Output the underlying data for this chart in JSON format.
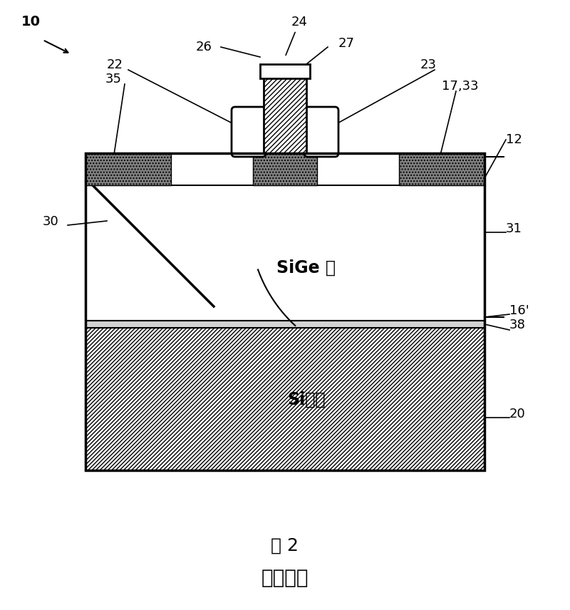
{
  "bg_color": "#ffffff",
  "title1": "图 2",
  "title2": "现有技术",
  "label_10": "10",
  "label_12": "12",
  "label_16p": "16'",
  "label_17_33": "17,33",
  "label_20": "20",
  "label_22": "22",
  "label_23": "23",
  "label_24": "24",
  "label_26": "26",
  "label_27": "27",
  "label_30": "30",
  "label_31": "31",
  "label_35": "35",
  "label_38": "38",
  "text_sige": "SiGe 层",
  "text_si": "Si衬底",
  "text_si_cap": "Si",
  "line_color": "#000000",
  "hatch_diag": "/",
  "hatch_dot": ".",
  "hatch_cross_diag": "/"
}
